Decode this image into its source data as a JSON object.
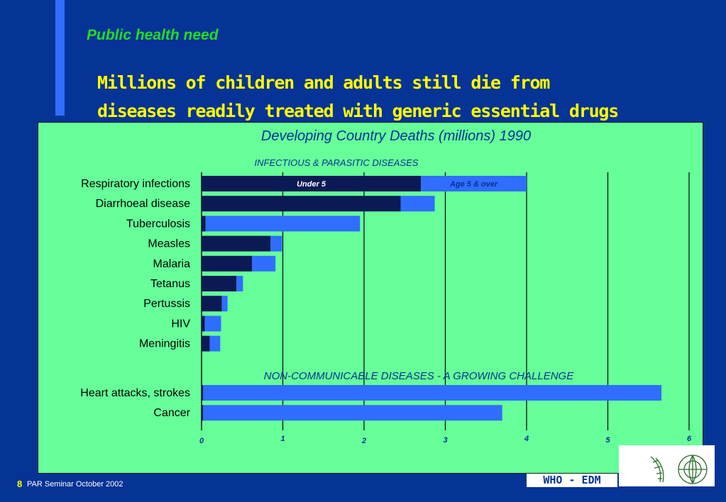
{
  "slide": {
    "section_title": "Public health need",
    "headline_line1": "Millions of children and adults still die from",
    "headline_line2": "diseases readily treated with generic essential drugs",
    "page_number": "8",
    "footer_text": "PAR Seminar October 2002",
    "org_label": "WHO - EDM"
  },
  "colors": {
    "background": "#063396",
    "panel": "#66FF99",
    "under5": "#0B1A55",
    "age5over": "#2F6EFF",
    "section_title": "#22DD22",
    "headline": "#FFFF00"
  },
  "chart_data": {
    "type": "bar",
    "orientation": "horizontal",
    "stacked": true,
    "title": "Developing Country Deaths (millions) 1990",
    "xlim": [
      0,
      6
    ],
    "xticks": [
      "0",
      "1",
      "2",
      "3",
      "4",
      "5",
      "6"
    ],
    "grid": true,
    "groups": [
      {
        "label": "INFECTIOUS & PARASITIC DISEASES",
        "categories": [
          "Respiratory infections",
          "Diarrhoeal disease",
          "Tuberculosis",
          "Measles",
          "Malaria",
          "Tetanus",
          "Pertussis",
          "HIV",
          "Meningitis"
        ],
        "series": [
          {
            "name": "Under 5",
            "values": [
              2.7,
              2.45,
              0.05,
              0.85,
              0.62,
              0.43,
              0.25,
              0.04,
              0.1
            ]
          },
          {
            "name": "Age 5 & over",
            "values": [
              1.3,
              0.42,
              1.9,
              0.14,
              0.29,
              0.08,
              0.07,
              0.2,
              0.13
            ]
          }
        ]
      },
      {
        "label": "NON-COMMUNICABLE DISEASES - A GROWING CHALLENGE",
        "categories": [
          "Heart attacks, strokes",
          "Cancer"
        ],
        "series": [
          {
            "name": "Under 5",
            "values": [
              0.02,
              0.02
            ]
          },
          {
            "name": "Age 5 & over",
            "values": [
              5.64,
              3.68
            ]
          }
        ]
      }
    ]
  }
}
